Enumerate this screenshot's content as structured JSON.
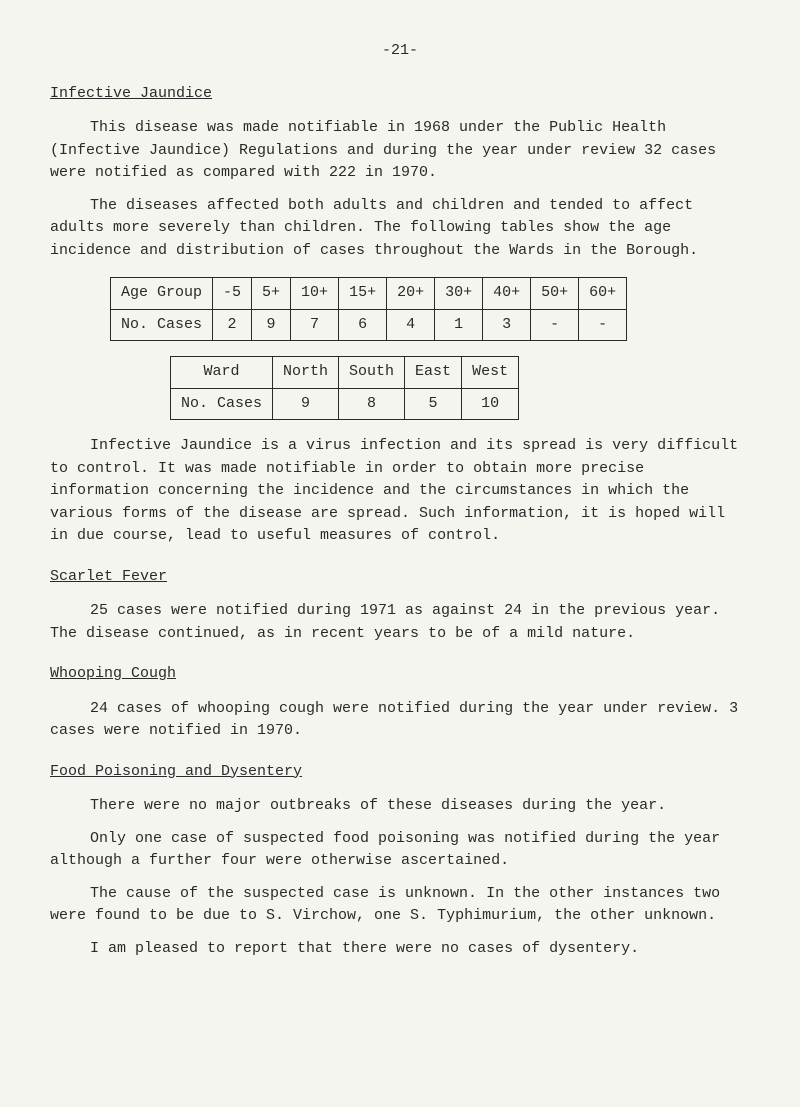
{
  "page_number": "-21-",
  "sections": {
    "infective_jaundice": {
      "heading": "Infective Jaundice",
      "p1": "This disease was made notifiable in 1968 under the Public Health (Infective Jaundice) Regulations and during the year under review 32 cases were notified as compared with 222 in 1970.",
      "p2": "The diseases affected both adults and children and tended to affect adults more severely than children.  The following tables show the age incidence and distribution of cases throughout the Wards in the Borough.",
      "p3": "Infective Jaundice is a virus infection and its spread is very difficult to control.  It was made notifiable in order to obtain more precise information concerning the incidence and the circumstances in which the various forms of the disease are spread.  Such information, it is hoped will in due course, lead to useful measures of control."
    },
    "scarlet_fever": {
      "heading": "Scarlet Fever",
      "p1": "25 cases were notified during 1971 as against 24 in the previous year. The disease continued, as in recent years to be of a mild nature."
    },
    "whooping_cough": {
      "heading": "Whooping Cough",
      "p1": "24 cases of whooping cough were notified during the year under review. 3 cases were notified in 1970."
    },
    "food_poisoning": {
      "heading": "Food Poisoning and Dysentery",
      "p1": "There were no major outbreaks of these diseases during the year.",
      "p2": "Only one case of suspected food poisoning was notified during the year although a further four were otherwise ascertained.",
      "p3": "The cause of the suspected case is unknown.  In the other instances two were found to be due to S. Virchow, one S. Typhimurium, the other unknown.",
      "p4": "I am pleased to report that there were no cases of dysentery."
    }
  },
  "age_table": {
    "type": "table",
    "headers": [
      "Age Group",
      "-5",
      "5+",
      "10+",
      "15+",
      "20+",
      "30+",
      "40+",
      "50+",
      "60+"
    ],
    "row_label": "No. Cases",
    "values": [
      "2",
      "9",
      "7",
      "6",
      "4",
      "1",
      "3",
      "-",
      "-"
    ]
  },
  "ward_table": {
    "type": "table",
    "headers": [
      "Ward",
      "North",
      "South",
      "East",
      "West"
    ],
    "row_label": "No. Cases",
    "values": [
      "9",
      "8",
      "5",
      "10"
    ]
  }
}
